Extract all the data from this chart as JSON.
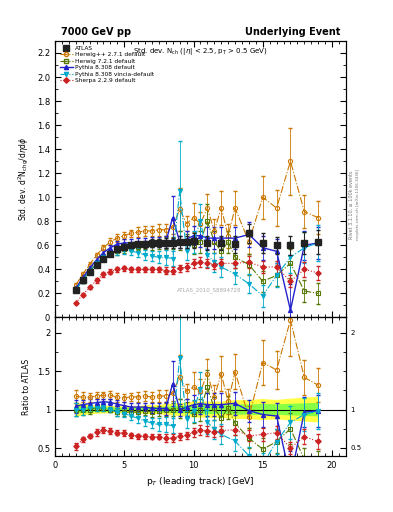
{
  "title_left": "7000 GeV pp",
  "title_right": "Underlying Event",
  "plot_title": "Std. dev. N$_{ch}$ ($|\\eta|$ < 2.5, p$_T$ > 0.5 GeV)",
  "xlabel": "p$_T$ (leading track) [GeV]",
  "ylabel_main": "Std. dev. d$^2$N$_{chg}$/d$\\eta$d$\\phi$",
  "ylabel_ratio": "Ratio to ATLAS",
  "watermark": "ATLAS_2010_S8894728",
  "xlim": [
    0,
    21
  ],
  "ylim_main": [
    0,
    2.3
  ],
  "ylim_ratio": [
    0.4,
    2.2
  ],
  "yticks_main": [
    0,
    0.2,
    0.4,
    0.6,
    0.8,
    1.0,
    1.2,
    1.4,
    1.6,
    1.8,
    2.0,
    2.2
  ],
  "yticks_ratio": [
    0.5,
    1.0,
    1.5,
    2.0
  ],
  "xticks": [
    0,
    5,
    10,
    15,
    20
  ],
  "atlas_x": [
    1.5,
    2.0,
    2.5,
    3.0,
    3.5,
    4.0,
    4.5,
    5.0,
    5.5,
    6.0,
    6.5,
    7.0,
    7.5,
    8.0,
    8.5,
    9.0,
    9.5,
    10.0,
    11.0,
    12.0,
    13.0,
    14.0,
    15.0,
    16.0,
    17.0,
    18.0,
    19.0
  ],
  "atlas_y": [
    0.23,
    0.31,
    0.38,
    0.44,
    0.49,
    0.53,
    0.57,
    0.59,
    0.6,
    0.61,
    0.61,
    0.62,
    0.62,
    0.62,
    0.62,
    0.63,
    0.63,
    0.64,
    0.62,
    0.62,
    0.61,
    0.7,
    0.62,
    0.6,
    0.6,
    0.62,
    0.63
  ],
  "atlas_yerr": [
    0.02,
    0.02,
    0.02,
    0.02,
    0.02,
    0.02,
    0.02,
    0.02,
    0.02,
    0.02,
    0.03,
    0.03,
    0.03,
    0.04,
    0.04,
    0.05,
    0.05,
    0.06,
    0.06,
    0.06,
    0.07,
    0.08,
    0.08,
    0.07,
    0.08,
    0.09,
    0.1
  ],
  "herwigpp_x": [
    1.5,
    2.0,
    2.5,
    3.0,
    3.5,
    4.0,
    4.5,
    5.0,
    5.5,
    6.0,
    6.5,
    7.0,
    7.5,
    8.0,
    8.5,
    9.0,
    9.5,
    10.0,
    10.5,
    11.0,
    11.5,
    12.0,
    12.5,
    13.0,
    14.0,
    15.0,
    16.0,
    17.0,
    18.0,
    19.0
  ],
  "herwigpp_y": [
    0.27,
    0.36,
    0.44,
    0.52,
    0.58,
    0.63,
    0.66,
    0.68,
    0.7,
    0.71,
    0.72,
    0.72,
    0.73,
    0.73,
    0.75,
    0.9,
    0.78,
    0.83,
    0.78,
    0.91,
    0.72,
    0.91,
    0.68,
    0.91,
    0.63,
    1.0,
    0.91,
    1.3,
    0.88,
    0.83
  ],
  "herwigpp_yerr": [
    0.02,
    0.02,
    0.02,
    0.02,
    0.02,
    0.03,
    0.03,
    0.03,
    0.03,
    0.04,
    0.04,
    0.04,
    0.05,
    0.05,
    0.06,
    0.18,
    0.06,
    0.12,
    0.1,
    0.12,
    0.1,
    0.14,
    0.1,
    0.14,
    0.1,
    0.18,
    0.15,
    0.28,
    0.14,
    0.14
  ],
  "herwig72_x": [
    1.5,
    2.0,
    2.5,
    3.0,
    3.5,
    4.0,
    4.5,
    5.0,
    5.5,
    6.0,
    6.5,
    7.0,
    7.5,
    8.0,
    8.5,
    9.0,
    9.5,
    10.0,
    10.5,
    11.0,
    11.5,
    12.0,
    12.5,
    13.0,
    14.0,
    15.0,
    16.0,
    17.0,
    18.0,
    19.0
  ],
  "herwig72_y": [
    0.23,
    0.31,
    0.38,
    0.45,
    0.5,
    0.53,
    0.55,
    0.57,
    0.58,
    0.59,
    0.6,
    0.6,
    0.61,
    0.62,
    0.62,
    0.64,
    0.63,
    0.6,
    0.63,
    0.8,
    0.63,
    0.55,
    0.63,
    0.5,
    0.44,
    0.3,
    0.35,
    0.45,
    0.22,
    0.2
  ],
  "herwig72_yerr": [
    0.02,
    0.02,
    0.02,
    0.02,
    0.02,
    0.02,
    0.03,
    0.03,
    0.03,
    0.03,
    0.03,
    0.04,
    0.04,
    0.05,
    0.05,
    0.08,
    0.06,
    0.07,
    0.09,
    0.14,
    0.09,
    0.09,
    0.09,
    0.09,
    0.09,
    0.09,
    0.09,
    0.12,
    0.09,
    0.09
  ],
  "pythia8_x": [
    1.5,
    2.0,
    2.5,
    3.0,
    3.5,
    4.0,
    4.5,
    5.0,
    5.5,
    6.0,
    6.5,
    7.0,
    7.5,
    8.0,
    8.5,
    9.0,
    9.5,
    10.0,
    10.5,
    11.0,
    11.5,
    12.0,
    13.0,
    14.0,
    15.0,
    16.0,
    17.0,
    18.0,
    19.0
  ],
  "pythia8_y": [
    0.24,
    0.33,
    0.41,
    0.48,
    0.54,
    0.58,
    0.61,
    0.62,
    0.62,
    0.63,
    0.63,
    0.63,
    0.63,
    0.63,
    0.83,
    0.63,
    0.65,
    0.68,
    0.68,
    0.66,
    0.66,
    0.66,
    0.66,
    0.69,
    0.58,
    0.55,
    0.06,
    0.6,
    0.62
  ],
  "pythia8_yerr": [
    0.02,
    0.02,
    0.02,
    0.02,
    0.02,
    0.02,
    0.03,
    0.03,
    0.03,
    0.03,
    0.03,
    0.04,
    0.04,
    0.05,
    0.18,
    0.05,
    0.07,
    0.08,
    0.09,
    0.09,
    0.09,
    0.09,
    0.09,
    0.1,
    0.1,
    0.1,
    0.22,
    0.12,
    0.13
  ],
  "pythia8v_x": [
    1.5,
    2.0,
    2.5,
    3.0,
    3.5,
    4.0,
    4.5,
    5.0,
    5.5,
    6.0,
    6.5,
    7.0,
    7.5,
    8.0,
    8.5,
    9.0,
    9.5,
    10.0,
    10.5,
    11.0,
    11.5,
    12.0,
    13.0,
    14.0,
    15.0,
    16.0,
    17.0,
    18.0,
    19.0
  ],
  "pythia8v_y": [
    0.23,
    0.31,
    0.39,
    0.45,
    0.5,
    0.53,
    0.55,
    0.56,
    0.55,
    0.54,
    0.52,
    0.51,
    0.5,
    0.5,
    0.49,
    1.05,
    0.55,
    0.63,
    0.8,
    0.52,
    0.46,
    0.42,
    0.36,
    0.28,
    0.18,
    0.35,
    0.5,
    0.58,
    0.62
  ],
  "pythia8v_yerr": [
    0.02,
    0.02,
    0.02,
    0.02,
    0.02,
    0.02,
    0.03,
    0.03,
    0.03,
    0.04,
    0.04,
    0.04,
    0.05,
    0.06,
    0.06,
    0.42,
    0.07,
    0.09,
    0.14,
    0.1,
    0.08,
    0.08,
    0.08,
    0.08,
    0.09,
    0.1,
    0.13,
    0.13,
    0.15
  ],
  "sherpa_x": [
    1.5,
    2.0,
    2.5,
    3.0,
    3.5,
    4.0,
    4.5,
    5.0,
    5.5,
    6.0,
    6.5,
    7.0,
    7.5,
    8.0,
    8.5,
    9.0,
    9.5,
    10.0,
    10.5,
    11.0,
    11.5,
    12.0,
    13.0,
    14.0,
    15.0,
    16.0,
    17.0,
    18.0,
    19.0
  ],
  "sherpa_y": [
    0.12,
    0.19,
    0.25,
    0.31,
    0.36,
    0.38,
    0.4,
    0.41,
    0.4,
    0.4,
    0.4,
    0.4,
    0.4,
    0.39,
    0.39,
    0.41,
    0.42,
    0.45,
    0.46,
    0.45,
    0.44,
    0.45,
    0.45,
    0.46,
    0.42,
    0.42,
    0.3,
    0.4,
    0.37
  ],
  "sherpa_yerr": [
    0.01,
    0.01,
    0.01,
    0.02,
    0.02,
    0.02,
    0.02,
    0.02,
    0.02,
    0.02,
    0.02,
    0.02,
    0.02,
    0.03,
    0.03,
    0.03,
    0.03,
    0.04,
    0.04,
    0.04,
    0.04,
    0.04,
    0.04,
    0.05,
    0.05,
    0.05,
    0.05,
    0.06,
    0.06
  ],
  "color_atlas": "#333333",
  "color_herwigpp": "#cc7700",
  "color_herwig72": "#557700",
  "color_pythia8": "#2222cc",
  "color_pythia8v": "#00aacc",
  "color_sherpa": "#cc2222",
  "band_yellow": "#ffff44",
  "band_green": "#88ff44"
}
